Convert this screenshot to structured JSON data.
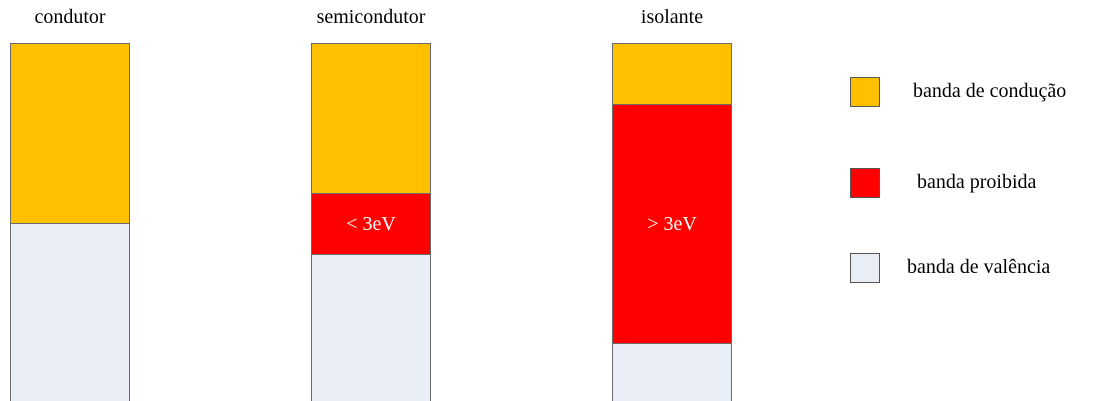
{
  "colors": {
    "conduction": "#FFC000",
    "forbidden": "#FF0000",
    "valence": "#E8EDF6",
    "border": "#6B6B6B",
    "gap_label": "#FFFFFF"
  },
  "columns": [
    {
      "title": "condutor",
      "bands": [
        {
          "type": "conduction",
          "fraction": 0.5,
          "label": ""
        },
        {
          "type": "valence",
          "fraction": 0.5,
          "label": ""
        }
      ]
    },
    {
      "title": "semicondutor",
      "bands": [
        {
          "type": "conduction",
          "fraction": 0.415,
          "label": ""
        },
        {
          "type": "forbidden",
          "fraction": 0.17,
          "label": "< 3eV"
        },
        {
          "type": "valence",
          "fraction": 0.415,
          "label": ""
        }
      ]
    },
    {
      "title": "isolante",
      "bands": [
        {
          "type": "conduction",
          "fraction": 0.167,
          "label": ""
        },
        {
          "type": "forbidden",
          "fraction": 0.667,
          "label": "> 3eV"
        },
        {
          "type": "valence",
          "fraction": 0.166,
          "label": ""
        }
      ]
    }
  ],
  "legend": [
    {
      "type": "conduction",
      "label": "banda de condução"
    },
    {
      "type": "forbidden",
      "label": "banda proibida"
    },
    {
      "type": "valence",
      "label": "banda de valência"
    }
  ]
}
